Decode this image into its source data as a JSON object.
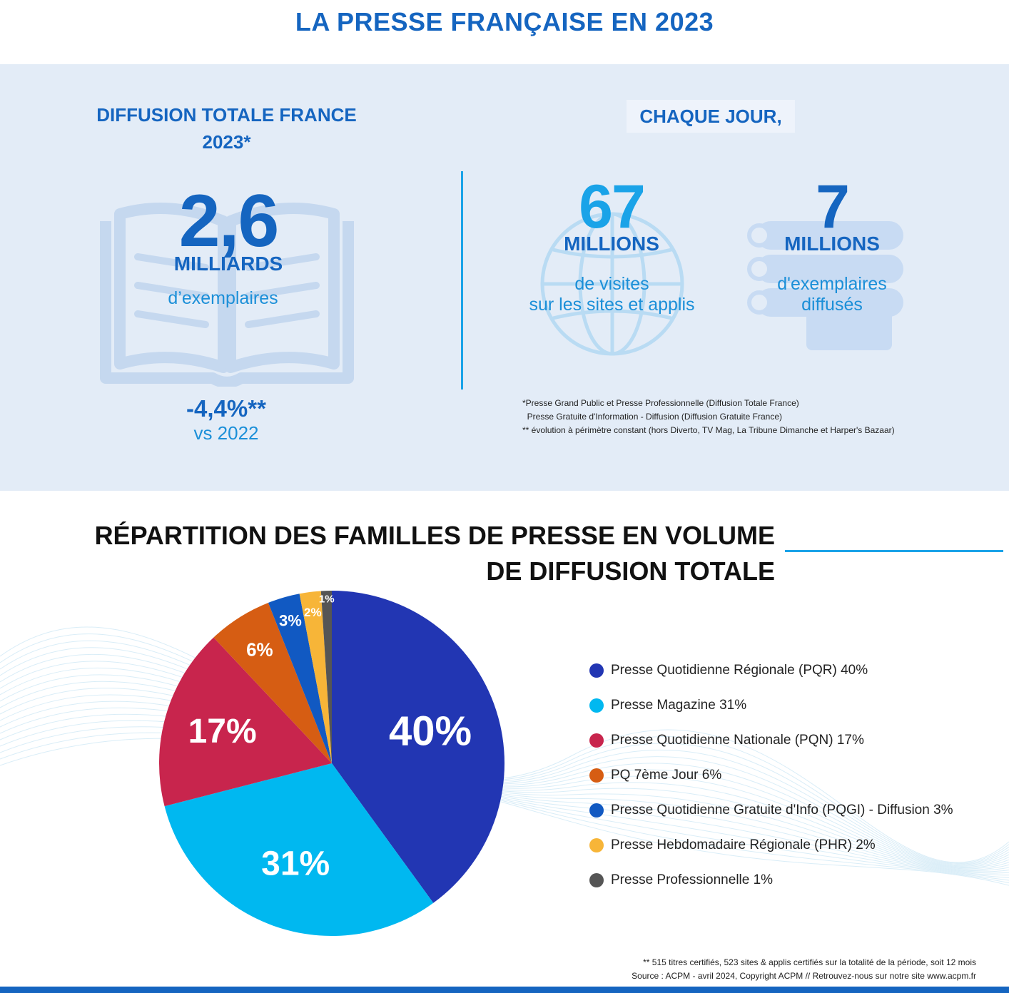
{
  "title": "LA PRESSE FRANÇAISE EN 2023",
  "diffusion": {
    "title_line1": "DIFFUSION TOTALE FRANCE",
    "title_line2": "2023*",
    "value": "2,6",
    "unit": "MILLIARDS",
    "desc": "d’exemplaires",
    "change": "-4,4%**",
    "change_ref": "vs 2022"
  },
  "daily": {
    "title": "CHAQUE JOUR,",
    "visits": {
      "value": "67",
      "unit": "MILLIONS",
      "desc_line1": "de visites",
      "desc_line2": "sur les sites et applis"
    },
    "copies": {
      "value": "7",
      "unit": "MILLIONS",
      "desc_line1": "d'exemplaires",
      "desc_line2": "diffusés"
    }
  },
  "notes": [
    "*Presse Grand Public et Presse Professionnelle (Diffusion Totale France)",
    "  Presse Gratuite d'Information - Diffusion (Diffusion Gratuite France)",
    "** évolution à périmètre constant (hors Diverto, TV Mag, La Tribune Dimanche et Harper's Bazaar)"
  ],
  "chart_title_line1": "RÉPARTITION DES FAMILLES DE PRESSE EN VOLUME",
  "chart_title_line2": "DE DIFFUSION TOTALE",
  "chart_data": {
    "type": "pie",
    "title": "RÉPARTITION DES FAMILLES DE PRESSE EN VOLUME DE DIFFUSION TOTALE",
    "legend_position": "right",
    "slices": [
      {
        "label": "Presse Quotidienne Régionale (PQR)",
        "value": 40,
        "display": "40%",
        "color": "#2236b3"
      },
      {
        "label": "Presse Magazine",
        "value": 31,
        "display": "31%",
        "color": "#00b8f0"
      },
      {
        "label": "Presse Quotidienne Nationale (PQN)",
        "value": 17,
        "display": "17%",
        "color": "#c8254d"
      },
      {
        "label": "PQ 7ème Jour",
        "value": 6,
        "display": "6%",
        "color": "#d65d13"
      },
      {
        "label": "Presse Quotidienne Gratuite d'Info (PQGI) - Diffusion",
        "value": 3,
        "display": "3%",
        "color": "#1159c2"
      },
      {
        "label": "Presse Hebdomadaire Régionale (PHR)",
        "value": 2,
        "display": "2%",
        "color": "#f7b538"
      },
      {
        "label": "Presse Professionnelle",
        "value": 1,
        "display": "1%",
        "color": "#555555"
      }
    ]
  },
  "footer": {
    "line1": "** 515 titres certifiés, 523 sites & applis certifiés sur la totalité de la période, soit 12 mois",
    "line2": "Source : ACPM - avril 2024, Copyright ACPM // Retrouvez-nous sur notre site www.acpm.fr"
  }
}
